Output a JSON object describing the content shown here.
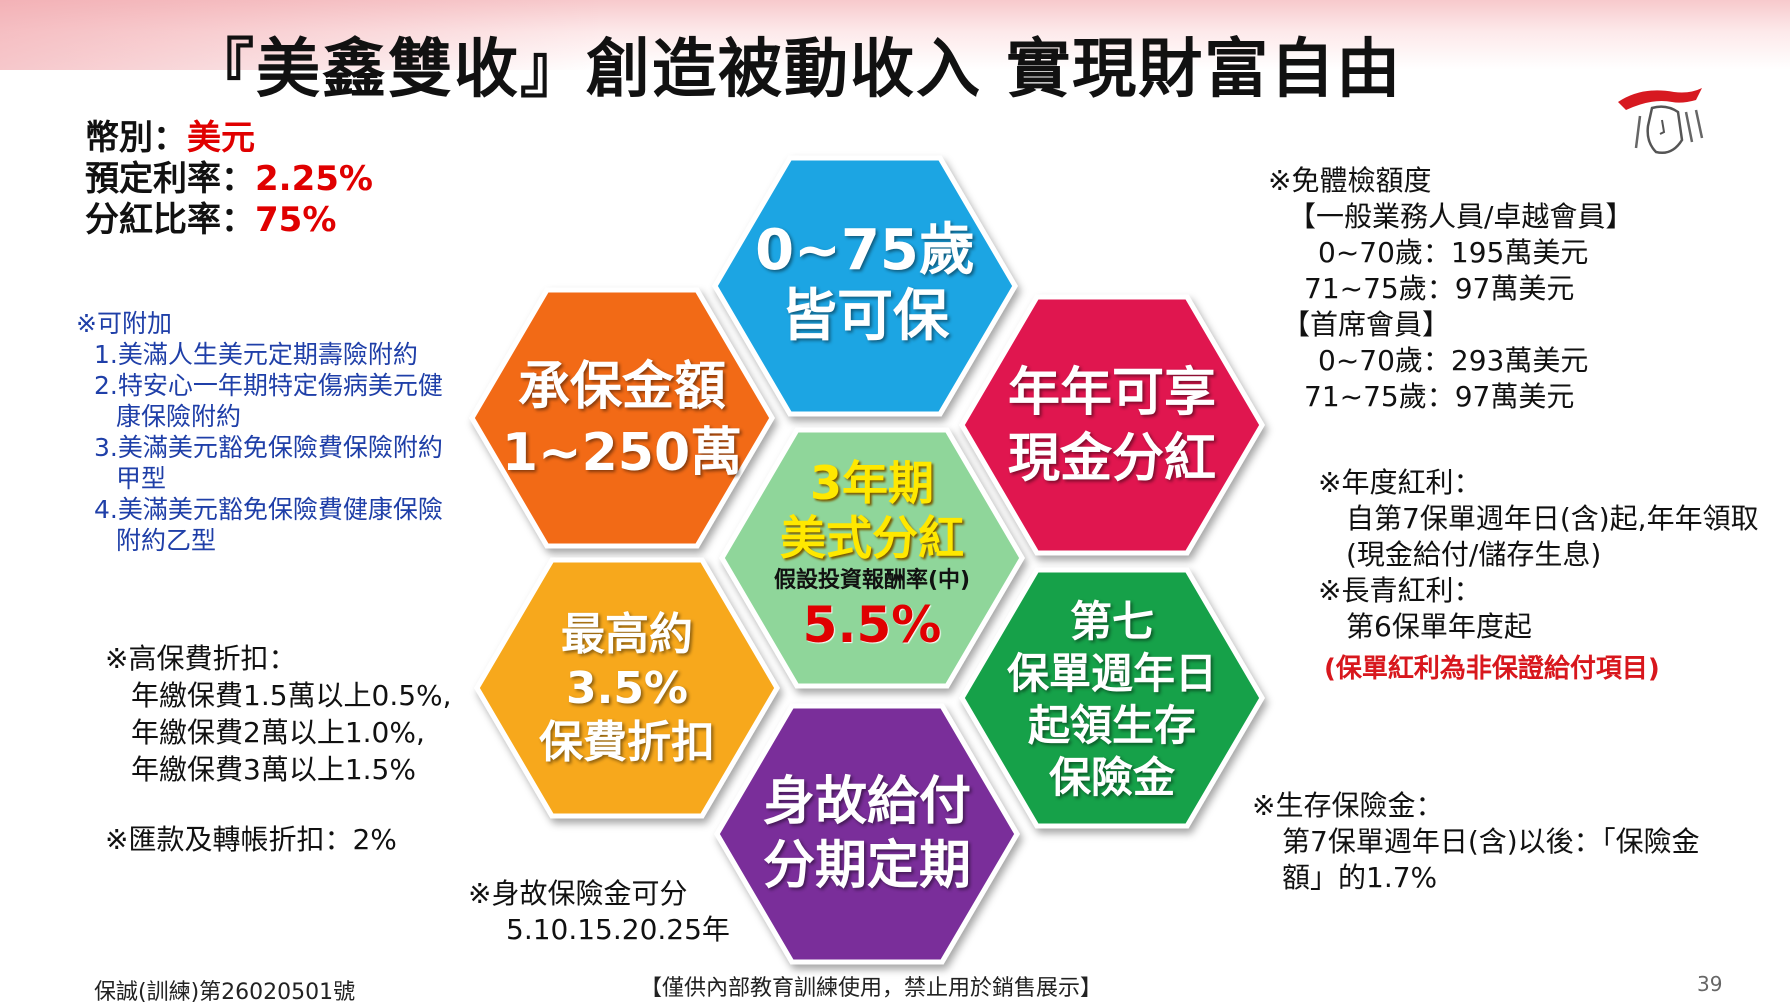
{
  "title": "『美鑫雙收』創造被動收入 實現財富自由",
  "basic": {
    "currency_label": "幣別：",
    "currency_value": "美元",
    "rate_label": "預定利率：",
    "rate_value": "2.25%",
    "dividend_label": "分紅比率：",
    "dividend_value": "75%"
  },
  "riders": {
    "heading": "※可附加",
    "items": [
      "1.美滿人生美元定期壽險附約",
      "2.特安心一年期特定傷病美元健",
      "康保險附約",
      "3.美滿美元豁免保險費保險附約",
      "甲型",
      "4.美滿美元豁免保險費健康保險",
      "附約乙型"
    ]
  },
  "discount": {
    "heading": "※高保費折扣：",
    "lines": [
      "年繳保費1.5萬以上0.5%,",
      "年繳保費2萬以上1.0%,",
      "年繳保費3萬以上1.5%"
    ],
    "remit": "※匯款及轉帳折扣：2%"
  },
  "death": {
    "heading": "※身故保險金可分",
    "line": "5.10.15.20.25年"
  },
  "exam": {
    "heading": "※免體檢額度",
    "group1": "【一般業務人員/卓越會員】",
    "g1_line1": "0~70歲：195萬美元",
    "g1_line2": "71~75歲：97萬美元",
    "group2": "【首席會員】",
    "g2_line1": "0~70歲：293萬美元",
    "g2_line2": "71~75歲：97萬美元"
  },
  "bonus": {
    "annual_heading": "※年度紅利：",
    "annual_line1": "自第7保單週年日(含)起,年年領取",
    "annual_line2": "(現金給付/儲存生息)",
    "evergreen_heading": "※長青紅利：",
    "evergreen_line": "第6保單年度起",
    "note": "(保單紅利為非保證給付項目)"
  },
  "survival": {
    "heading": "※生存保險金：",
    "line1": "第7保單週年日(含)以後：「保險金",
    "line2": "額」的1.7%"
  },
  "hexagons": {
    "top": {
      "line1": "0~75歲",
      "line2": "皆可保",
      "color": "#1ba5e3"
    },
    "upper_left": {
      "line1": "承保金額",
      "line2": "1~250萬",
      "color": "#f26a18"
    },
    "upper_right": {
      "line1": "年年可享",
      "line2": "現金分紅",
      "color": "#e0124f"
    },
    "center": {
      "line1": "3年期",
      "line2": "美式分紅",
      "line3": "假設投資報酬率(中)",
      "line4": "5.5%",
      "color": "#8fd69a"
    },
    "lower_left": {
      "line1": "最高約",
      "line2": "3.5%",
      "line3": "保費折扣",
      "color": "#f7a81b"
    },
    "lower_right": {
      "line1": "第七",
      "line2": "保單週年日",
      "line3": "起領生存",
      "line4": "保險金",
      "color": "#16a14a"
    },
    "bottom": {
      "line1": "身故給付",
      "line2": "分期定期",
      "color": "#7a2f9a"
    }
  },
  "footer": {
    "code": "保誠(訓練)第26020501號",
    "notice": "【僅供內部教育訓練使用，禁止用於銷售展示】",
    "page": "39"
  },
  "colors": {
    "accent_red": "#e00000",
    "rider_blue": "#1f3fa8",
    "note_red": "#d8171d"
  }
}
